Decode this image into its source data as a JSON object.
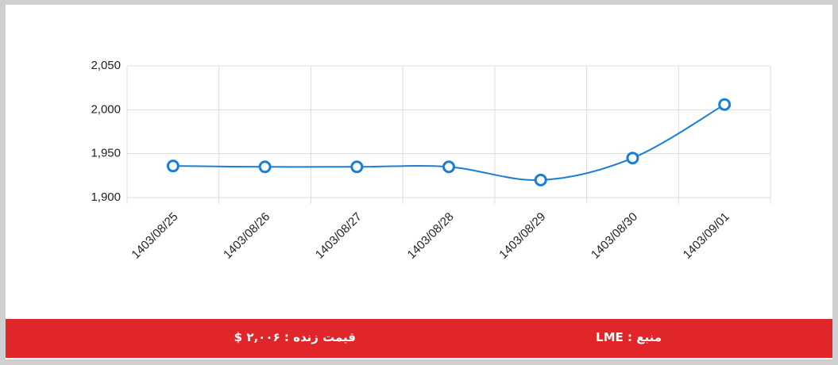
{
  "chart_data": {
    "type": "line",
    "categories": [
      "1403/08/25",
      "1403/08/26",
      "1403/08/27",
      "1403/08/28",
      "1403/08/29",
      "1403/08/30",
      "1403/09/01"
    ],
    "series": [
      {
        "color": "#1a7fd4",
        "values": [
          1936,
          1935,
          1935,
          1935,
          1920,
          1945,
          2006
        ]
      }
    ],
    "ylim": [
      1900,
      2050
    ],
    "yticks": [
      {
        "value": 1900,
        "label": "1,900"
      },
      {
        "value": 1950,
        "label": "1,950"
      },
      {
        "value": 2000,
        "label": "2,000"
      },
      {
        "value": 2050,
        "label": "2,050"
      }
    ],
    "grid": true
  },
  "footer": {
    "live_price": "قیمت زنده : ۲,۰۰۶ $",
    "source": "منبع : LME"
  }
}
